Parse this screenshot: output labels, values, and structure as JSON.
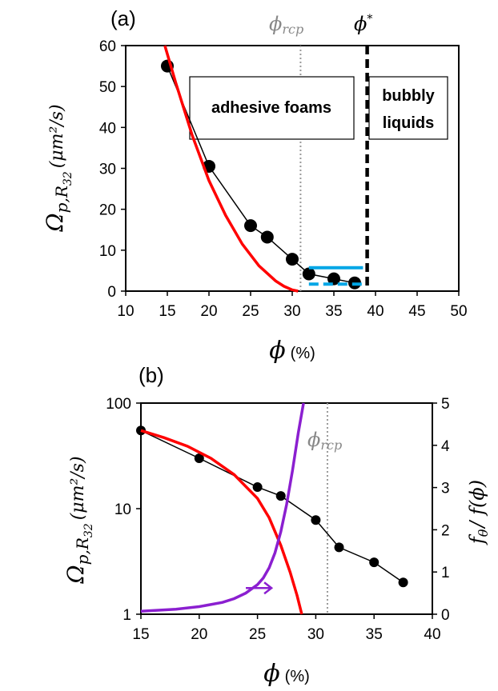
{
  "chart_data": [
    {
      "type": "line",
      "panel_label": "(a)",
      "xlabel": "ϕ",
      "xlabel_unit": "(%)",
      "ylabel_main": "Ω",
      "ylabel_sub": "p,R",
      "ylabel_subsub": "32",
      "ylabel_units": "(μm²/s)",
      "xlim": [
        10,
        50
      ],
      "ylim": [
        0,
        60
      ],
      "xticks": [
        "10",
        "15",
        "20",
        "25",
        "30",
        "35",
        "40",
        "45",
        "50"
      ],
      "yticks": [
        "0",
        "10",
        "20",
        "30",
        "40",
        "50",
        "60"
      ],
      "series": [
        {
          "color": "#000000",
          "marker": "circle",
          "x": [
            15,
            20,
            25,
            27,
            30,
            32,
            35,
            37.5
          ],
          "y": [
            55,
            30.5,
            16,
            13.2,
            7.8,
            4.2,
            3.0,
            2.0
          ]
        },
        {
          "color": "#ff0000",
          "marker": "none",
          "x": [
            14.7,
            16,
            18,
            20,
            22,
            24,
            26,
            28,
            29,
            30,
            30.7
          ],
          "y": [
            60,
            51,
            38,
            27,
            18.5,
            11.5,
            6.2,
            2.5,
            1.2,
            0.3,
            0
          ]
        },
        {
          "color": "#00a6e6",
          "marker": "none",
          "style": "solid",
          "x": [
            32,
            38.5
          ],
          "y": [
            5.7,
            5.7
          ]
        },
        {
          "color": "#00a6e6",
          "marker": "none",
          "style": "dashed",
          "x": [
            32,
            38.5
          ],
          "y": [
            1.7,
            1.7
          ]
        }
      ],
      "vlines": [
        {
          "x": 31,
          "label": "ϕ",
          "label_sub": "rcp",
          "color": "#999999",
          "style": "dotted"
        },
        {
          "x": 39,
          "label": "ϕ",
          "label_sup": "*",
          "color": "#000000",
          "style": "dashed"
        }
      ],
      "annotations": [
        {
          "text": "adhesive foams"
        },
        {
          "lines": [
            "bubbly",
            "liquids"
          ]
        }
      ]
    },
    {
      "type": "line",
      "panel_label": "(b)",
      "xlabel": "ϕ",
      "xlabel_unit": "(%)",
      "ylabel_main": "Ω",
      "ylabel_sub": "p,R",
      "ylabel_subsub": "32",
      "ylabel_units": "(μm²/s)",
      "y2label_f": "f",
      "y2label_sub": "θ",
      "y2label_rest": "/ f(ϕ)",
      "xlim": [
        15,
        40
      ],
      "ylim": [
        1,
        100
      ],
      "yscale": "log",
      "y2lim": [
        0,
        5
      ],
      "xticks": [
        "15",
        "20",
        "25",
        "30",
        "35",
        "40"
      ],
      "yticks": [
        "1",
        "10",
        "100"
      ],
      "y2ticks": [
        "0",
        "1",
        "2",
        "3",
        "4",
        "5"
      ],
      "series": [
        {
          "color": "#000000",
          "marker": "circle",
          "axis": "left",
          "x": [
            15,
            20,
            25,
            27,
            30,
            32,
            35,
            37.5
          ],
          "y": [
            55,
            30,
            16,
            13.2,
            7.8,
            4.3,
            3.1,
            2.0
          ]
        },
        {
          "color": "#ff0000",
          "marker": "none",
          "axis": "left",
          "x": [
            15,
            17,
            19,
            21,
            23,
            25,
            26,
            27,
            27.8,
            28.4,
            28.8
          ],
          "y": [
            55,
            47,
            39,
            30,
            21,
            12.5,
            8.2,
            4.5,
            2.5,
            1.5,
            1.0
          ]
        },
        {
          "color": "#8b1fd0",
          "marker": "none",
          "axis": "right",
          "x": [
            15,
            18,
            20,
            22,
            23,
            24,
            25,
            25.5,
            26,
            26.5,
            27,
            27.5,
            28,
            28.5,
            28.95
          ],
          "y": [
            0.07,
            0.12,
            0.18,
            0.28,
            0.37,
            0.5,
            0.7,
            0.86,
            1.1,
            1.45,
            1.95,
            2.6,
            3.4,
            4.3,
            5.0
          ]
        }
      ],
      "vlines": [
        {
          "x": 31,
          "label": "ϕ",
          "label_sub": "rcp",
          "color": "#999999",
          "style": "dotted"
        }
      ],
      "arrows": [
        {
          "from": [
            24,
            0.62
          ],
          "to": [
            26.2,
            0.62
          ],
          "color": "#8b1fd0",
          "points_to": "right-axis"
        }
      ]
    }
  ]
}
